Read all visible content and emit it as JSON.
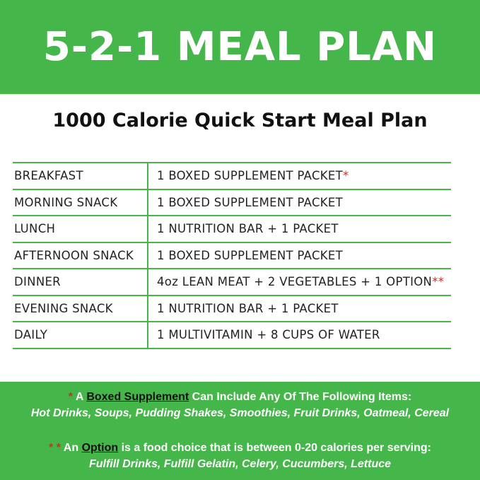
{
  "header": {
    "title": "5-2-1 MEAL PLAN"
  },
  "subtitle": "1000 Calorie Quick Start Meal Plan",
  "rows": [
    {
      "meal": "BREAKFAST",
      "plan": "1 BOXED SUPPLEMENT PACKET",
      "mark": "*"
    },
    {
      "meal": "MORNING SNACK",
      "plan": "1 BOXED SUPPLEMENT PACKET",
      "mark": ""
    },
    {
      "meal": "LUNCH",
      "plan": "1 NUTRITION BAR + 1 PACKET",
      "mark": ""
    },
    {
      "meal": "AFTERNOON SNACK",
      "plan": "1  BOXED SUPPLEMENT PACKET",
      "mark": ""
    },
    {
      "meal": "DINNER",
      "plan": "4oz LEAN MEAT + 2 VEGETABLES + 1 OPTION",
      "mark": "**"
    },
    {
      "meal": "EVENING SNACK",
      "plan": "1 NUTRITION BAR + 1 PACKET",
      "mark": ""
    },
    {
      "meal": "DAILY",
      "plan": "1 MULTIVITAMIN +  8 CUPS OF WATER",
      "mark": ""
    }
  ],
  "footer": {
    "note1": {
      "mark": "*",
      "pre": "A",
      "term": "Boxed Supplement",
      "post": "Can Include Any Of The Following Items:",
      "items": "Hot Drinks, Soups, Pudding Shakes, Smoothies, Fruit Drinks, Oatmeal, Cereal"
    },
    "note2": {
      "mark": "* *",
      "pre": "An",
      "term": "Option",
      "post": "is a food choice that is between 0-20 calories per serving:",
      "items": "Fulfill Drinks, Fulfill Gelatin, Celery, Cucumbers, Lettuce"
    }
  },
  "colors": {
    "green": "#45b649",
    "asterisk": "#d62a2a"
  }
}
